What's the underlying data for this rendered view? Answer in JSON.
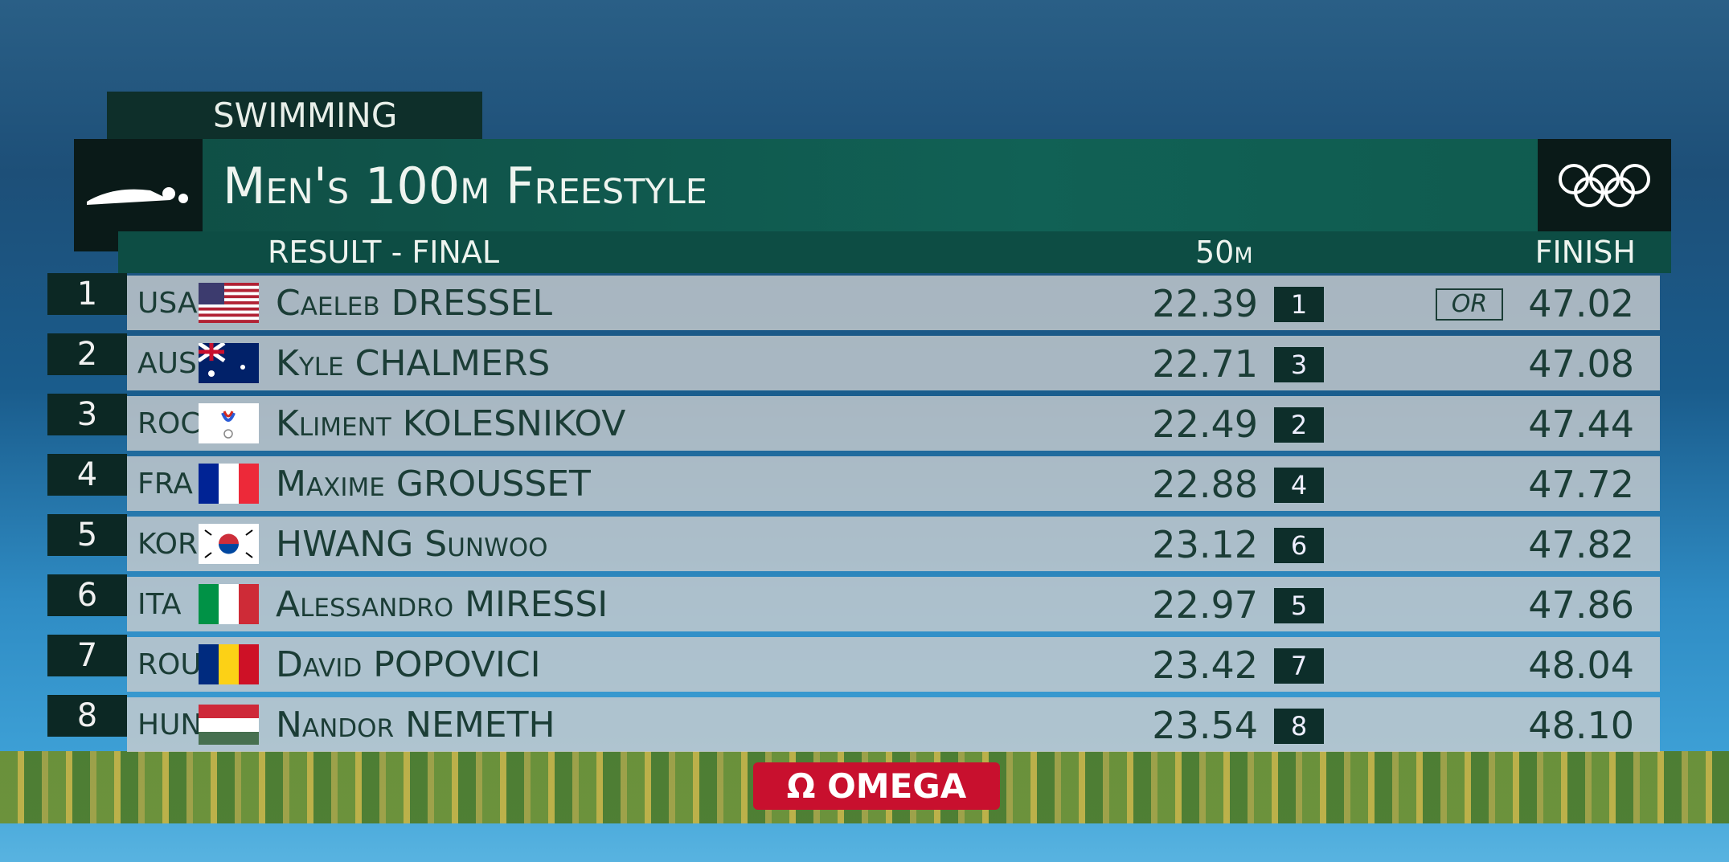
{
  "header": {
    "sport": "SWIMMING",
    "event": "Men's 100m Freestyle",
    "subtitle": "RESULT - FINAL",
    "split_label": "50m",
    "finish_label": "FINISH"
  },
  "table": {
    "rows": [
      {
        "rank": "1",
        "country": "USA",
        "name": "Caeleb DRESSEL",
        "split": "22.39",
        "split_rank": "1",
        "record": "OR",
        "finish": "47.02"
      },
      {
        "rank": "2",
        "country": "AUS",
        "name": "Kyle CHALMERS",
        "split": "22.71",
        "split_rank": "3",
        "finish": "47.08"
      },
      {
        "rank": "3",
        "country": "ROC",
        "name": "Kliment KOLESNIKOV",
        "split": "22.49",
        "split_rank": "2",
        "finish": "47.44"
      },
      {
        "rank": "4",
        "country": "FRA",
        "name": "Maxime GROUSSET",
        "split": "22.88",
        "split_rank": "4",
        "finish": "47.72"
      },
      {
        "rank": "5",
        "country": "KOR",
        "name": "HWANG Sunwoo",
        "split": "23.12",
        "split_rank": "6",
        "finish": "47.82"
      },
      {
        "rank": "6",
        "country": "ITA",
        "name": "Alessandro MIRESSI",
        "split": "22.97",
        "split_rank": "5",
        "finish": "47.86"
      },
      {
        "rank": "7",
        "country": "ROU",
        "name": "David POPOVICI",
        "split": "23.42",
        "split_rank": "7",
        "finish": "48.04"
      },
      {
        "rank": "8",
        "country": "HUN",
        "name": "Nandor NEMETH",
        "split": "23.54",
        "split_rank": "8",
        "finish": "48.10"
      }
    ]
  },
  "footer": {
    "sponsor": "OMEGA"
  }
}
